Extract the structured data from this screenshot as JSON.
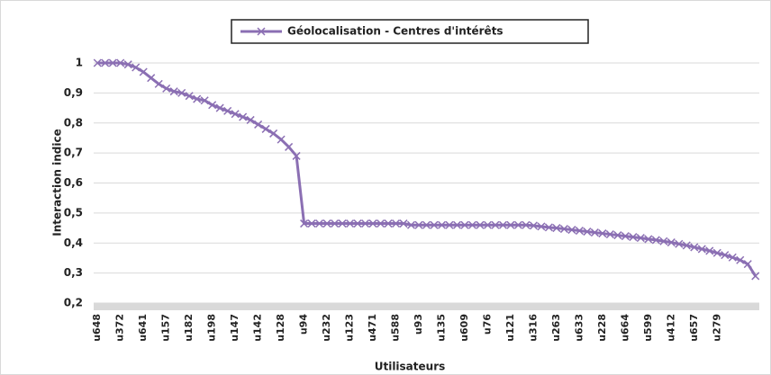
{
  "chart_data": {
    "type": "line",
    "legend_position": "top",
    "x_label": "Utilisateurs",
    "y_label": "Interaction indice",
    "categories": [
      "u648",
      null,
      null,
      "u372",
      null,
      null,
      "u641",
      null,
      null,
      "u157",
      null,
      null,
      "u182",
      null,
      null,
      "u198",
      null,
      null,
      "u147",
      null,
      null,
      "u142",
      null,
      null,
      "u128",
      null,
      null,
      "u94",
      null,
      null,
      "u232",
      null,
      null,
      "u123",
      null,
      null,
      "u471",
      null,
      null,
      "u588",
      null,
      null,
      "u93",
      null,
      null,
      "u135",
      null,
      null,
      "u609",
      null,
      null,
      "u76",
      null,
      null,
      "u121",
      null,
      null,
      "u316",
      null,
      null,
      "u263",
      null,
      null,
      "u633",
      null,
      null,
      "u228",
      null,
      null,
      "u664",
      null,
      null,
      "u599",
      null,
      null,
      "u412",
      null,
      null,
      "u657",
      null,
      null,
      "u279",
      null,
      null,
      null,
      null,
      null
    ],
    "series": [
      {
        "name": "Géolocalisation - Centres d'intérêts",
        "color": "#8b6fb3",
        "values": [
          1,
          1,
          1,
          1,
          0.995,
          0.985,
          0.97,
          0.95,
          0.93,
          0.915,
          0.905,
          0.9,
          0.89,
          0.88,
          0.875,
          0.86,
          0.85,
          0.84,
          0.83,
          0.82,
          0.81,
          0.795,
          0.78,
          0.765,
          0.745,
          0.72,
          0.69,
          0.465,
          0.465,
          0.465,
          0.465,
          0.465,
          0.465,
          0.465,
          0.465,
          0.465,
          0.465,
          0.465,
          0.465,
          0.465,
          0.465,
          0.46,
          0.46,
          0.46,
          0.46,
          0.46,
          0.46,
          0.46,
          0.46,
          0.46,
          0.46,
          0.46,
          0.46,
          0.46,
          0.46,
          0.46,
          0.46,
          0.458,
          0.455,
          0.452,
          0.45,
          0.447,
          0.444,
          0.441,
          0.438,
          0.435,
          0.432,
          0.429,
          0.426,
          0.423,
          0.42,
          0.417,
          0.413,
          0.41,
          0.406,
          0.402,
          0.397,
          0.392,
          0.386,
          0.38,
          0.374,
          0.367,
          0.36,
          0.352,
          0.343,
          0.33,
          0.29
        ]
      }
    ],
    "ylim": [
      0.2,
      1
    ],
    "yticks": [
      {
        "value": 0.2,
        "label": "0,2"
      },
      {
        "value": 0.3,
        "label": "0,3"
      },
      {
        "value": 0.4,
        "label": "0,4"
      },
      {
        "value": 0.5,
        "label": "0,5"
      },
      {
        "value": 0.6,
        "label": "0,6"
      },
      {
        "value": 0.7,
        "label": "0,7"
      },
      {
        "value": 0.8,
        "label": "0,8"
      },
      {
        "value": 0.9,
        "label": "0,9"
      },
      1
    ],
    "grid": true
  }
}
